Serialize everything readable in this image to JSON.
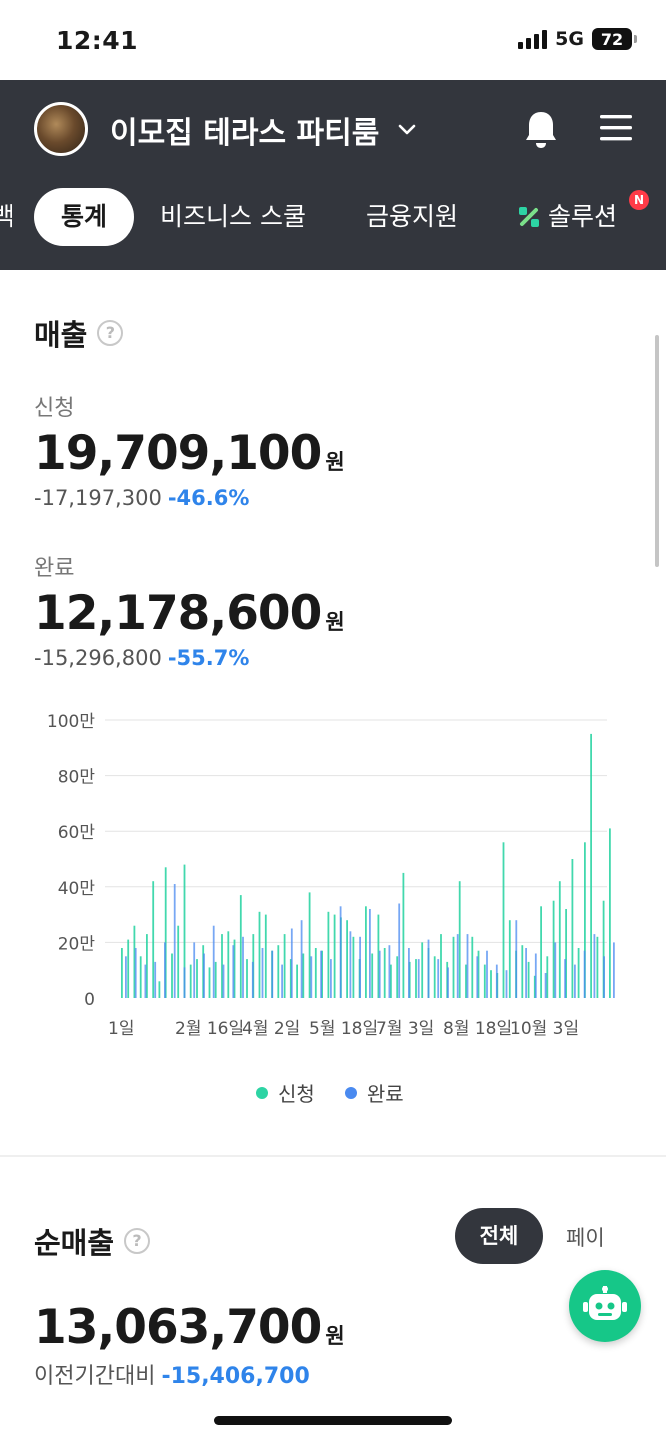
{
  "status_bar": {
    "time": "12:41",
    "network": "5G",
    "battery": "72"
  },
  "header": {
    "store_name": "이모집 테라스 파티룸",
    "tabs": [
      {
        "label": "백"
      },
      {
        "label": "통계",
        "active": true
      },
      {
        "label": "비즈니스 스쿨"
      },
      {
        "label": "금융지원"
      },
      {
        "label": "솔루션",
        "badge": "N"
      }
    ]
  },
  "sales": {
    "title": "매출",
    "help": "?",
    "applied": {
      "label": "신청",
      "amount": "19,709,100",
      "unit": "원",
      "diff": "-17,197,300",
      "diff_pct": "-46.6%"
    },
    "completed": {
      "label": "완료",
      "amount": "12,178,600",
      "unit": "원",
      "diff": "-15,296,800",
      "diff_pct": "-55.7%"
    }
  },
  "chart_data": {
    "type": "bar",
    "y_ticks": [
      "0",
      "20만",
      "40만",
      "60만",
      "80만",
      "100만"
    ],
    "ylim": [
      0,
      1000000
    ],
    "x_ticks": [
      "1일",
      "2월 16일",
      "4월 2일",
      "5월 18일",
      "7월 3일",
      "8월 18일",
      "10월 3일"
    ],
    "grid": true,
    "legend_position": "bottom",
    "series": [
      {
        "name": "신청",
        "color": "#2dd4a4",
        "values": [
          180000,
          210000,
          260000,
          150000,
          230000,
          420000,
          60000,
          470000,
          160000,
          260000,
          480000,
          120000,
          140000,
          190000,
          110000,
          130000,
          230000,
          240000,
          210000,
          370000,
          140000,
          230000,
          310000,
          300000,
          170000,
          190000,
          230000,
          140000,
          120000,
          160000,
          380000,
          180000,
          170000,
          310000,
          300000,
          290000,
          280000,
          220000,
          140000,
          330000,
          160000,
          300000,
          180000,
          120000,
          150000,
          450000,
          130000,
          140000,
          200000,
          180000,
          150000,
          230000,
          130000,
          220000,
          420000,
          120000,
          220000,
          170000,
          120000,
          100000,
          90000,
          560000,
          280000,
          170000,
          190000,
          130000,
          80000,
          330000,
          150000,
          350000,
          420000,
          320000,
          500000,
          180000,
          560000,
          950000,
          220000,
          350000,
          610000
        ]
      },
      {
        "name": "완료",
        "color": "#4a8af0",
        "values": [
          150000,
          180000,
          120000,
          130000,
          200000,
          410000,
          110000,
          200000,
          160000,
          260000,
          120000,
          190000,
          220000,
          130000,
          180000,
          170000,
          120000,
          250000,
          280000,
          150000,
          170000,
          140000,
          330000,
          240000,
          220000,
          320000,
          170000,
          190000,
          340000,
          180000,
          140000,
          210000,
          140000,
          110000,
          230000,
          230000,
          150000,
          170000,
          120000,
          100000,
          280000,
          180000,
          160000,
          90000,
          200000,
          140000,
          120000,
          170000,
          230000,
          150000,
          200000
        ]
      }
    ]
  },
  "legend": {
    "applied": "신청",
    "completed": "완료"
  },
  "net_sales": {
    "title": "순매출",
    "help": "?",
    "filter_all": "전체",
    "filter_pay": "페이",
    "amount": "13,063,700",
    "unit": "원",
    "compare_label": "이전기간대비",
    "compare_value": "-15,406,700"
  },
  "colors": {
    "header_bg": "#33363d",
    "accent_blue": "#2f84ea",
    "accent_green": "#16c788",
    "badge_red": "#ff3b48"
  },
  "icons": {
    "dropdown": "chevron-down-icon",
    "notifications": "bell-icon",
    "menu": "hamburger-menu-icon",
    "chatbot": "robot-icon"
  }
}
